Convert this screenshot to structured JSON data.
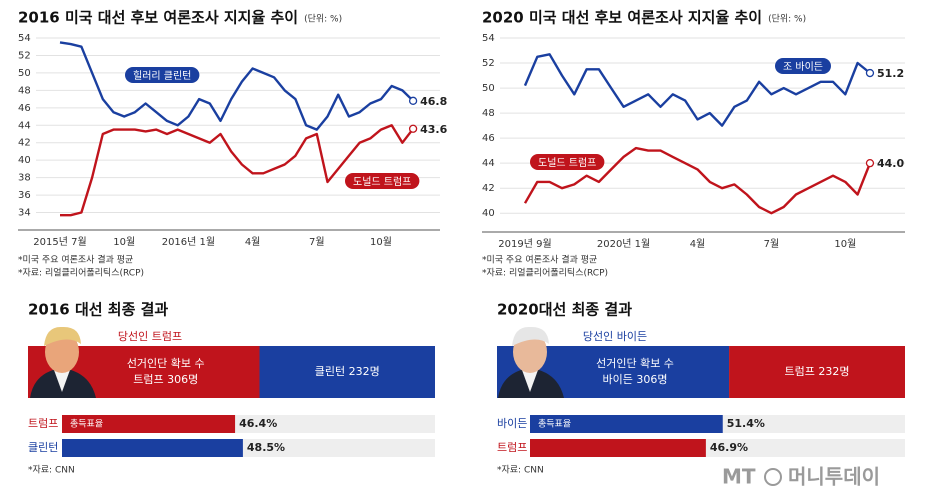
{
  "chart_data": [
    {
      "type": "line",
      "title": "2016 미국 대선 후보 여론조사 지지율 추이",
      "subtitle": "(단위: %)",
      "categories": [
        "2015년 7월",
        null,
        null,
        null,
        null,
        null,
        "10월",
        null,
        null,
        null,
        null,
        null,
        "2016년 1월",
        null,
        null,
        null,
        null,
        null,
        "4월",
        null,
        null,
        null,
        null,
        null,
        "7월",
        null,
        null,
        null,
        null,
        null,
        "10월",
        null,
        null,
        null
      ],
      "series": [
        {
          "name": "힐러리 클린턴",
          "color": "#1a3fa0",
          "values": [
            53.5,
            53.3,
            53,
            50,
            47,
            45.5,
            45,
            45.5,
            46.5,
            45.5,
            44.5,
            44,
            45,
            47,
            46.5,
            44.5,
            47,
            49,
            50.5,
            50,
            49.5,
            48,
            47,
            44,
            43.5,
            45,
            47.5,
            45,
            45.5,
            46.5,
            47,
            48.5,
            48,
            46.8
          ],
          "value_labels": [
            null,
            null,
            null,
            null,
            null,
            null,
            null,
            null,
            null,
            null,
            null,
            null,
            null,
            null,
            null,
            null,
            null,
            null,
            null,
            null,
            null,
            null,
            null,
            null,
            null,
            null,
            null,
            null,
            null,
            null,
            null,
            null,
            null,
            "46.8"
          ]
        },
        {
          "name": "도널드 트럼프",
          "color": "#c0141c",
          "values": [
            33.7,
            33.7,
            34,
            38,
            43,
            43.5,
            43.5,
            43.5,
            43.3,
            43.5,
            43,
            43.5,
            43,
            42.5,
            42,
            43,
            41,
            39.5,
            38.5,
            38.5,
            39,
            39.5,
            40.5,
            42.5,
            43,
            37.5,
            39,
            40.5,
            42,
            42.5,
            43.5,
            44,
            42,
            43.6
          ],
          "value_labels": [
            null,
            null,
            null,
            null,
            null,
            null,
            null,
            null,
            null,
            null,
            null,
            null,
            null,
            null,
            null,
            null,
            null,
            null,
            null,
            null,
            null,
            null,
            null,
            null,
            null,
            null,
            null,
            null,
            null,
            null,
            null,
            null,
            null,
            "43.6"
          ]
        }
      ],
      "ylim": [
        32,
        54
      ],
      "yticks": [
        34,
        36,
        38,
        40,
        42,
        44,
        46,
        48,
        50,
        52,
        54
      ],
      "grid": true,
      "notes": [
        "*미국 주요 여론조사 결과 평균",
        "*자료: 리얼클리어폴리틱스(RCP)"
      ]
    },
    {
      "type": "line",
      "title": "2020 미국 대선 후보 여론조사 지지율 추이",
      "subtitle": "(단위: %)",
      "categories": [
        "2019년 9월",
        null,
        null,
        null,
        null,
        null,
        null,
        null,
        "2020년 1월",
        null,
        null,
        null,
        null,
        null,
        "4월",
        null,
        null,
        null,
        null,
        null,
        "7월",
        null,
        null,
        null,
        null,
        null,
        "10월",
        null,
        null
      ],
      "series": [
        {
          "name": "조 바이든",
          "color": "#1a3fa0",
          "values": [
            50.2,
            52.5,
            52.7,
            51,
            49.5,
            51.5,
            51.5,
            50,
            48.5,
            49,
            49.5,
            48.5,
            49.5,
            49,
            47.5,
            48,
            47,
            48.5,
            49,
            50.5,
            49.5,
            50,
            49.5,
            50,
            50.5,
            50.5,
            49.5,
            52,
            51.2
          ],
          "value_labels": [
            null,
            null,
            null,
            null,
            null,
            null,
            null,
            null,
            null,
            null,
            null,
            null,
            null,
            null,
            null,
            null,
            null,
            null,
            null,
            null,
            null,
            null,
            null,
            null,
            null,
            null,
            null,
            null,
            "51.2"
          ]
        },
        {
          "name": "도널드 트럼프",
          "color": "#c0141c",
          "values": [
            40.8,
            42.5,
            42.5,
            42,
            42.3,
            43,
            42.5,
            43.5,
            44.5,
            45.2,
            45,
            45,
            44.5,
            44,
            43.5,
            42.5,
            42,
            42.3,
            41.5,
            40.5,
            40,
            40.5,
            41.5,
            42,
            42.5,
            43,
            42.5,
            41.5,
            44
          ],
          "value_labels": [
            null,
            null,
            null,
            null,
            null,
            null,
            null,
            null,
            null,
            null,
            null,
            null,
            null,
            null,
            null,
            null,
            null,
            null,
            null,
            null,
            null,
            null,
            null,
            null,
            null,
            null,
            null,
            null,
            "44.0"
          ]
        }
      ],
      "ylim": [
        38.5,
        54
      ],
      "yticks": [
        40,
        42,
        44,
        46,
        48,
        50,
        52,
        54
      ],
      "grid": true,
      "notes": [
        "*미국 주요 여론조사 결과 평균",
        "*자료: 리얼클리어폴리틱스(RCP)"
      ]
    },
    {
      "type": "result",
      "title": "2016 대선 최종 결과",
      "winner_label": "당선인 트럼프",
      "winner_color": "#c0141c",
      "electoral": {
        "label": "선거인단 확보 수",
        "values": [
          306,
          232
        ],
        "value_labels": [
          "트럼프 306명",
          "클린턴 232명"
        ],
        "colors": [
          "#c0141c",
          "#1a3fa0"
        ]
      },
      "popular": {
        "label": "총득표율",
        "categories": [
          "트럼프",
          "클린턴"
        ],
        "values": [
          46.4,
          48.5
        ],
        "value_labels": [
          "46.4%",
          "48.5%"
        ],
        "colors": [
          "#c0141c",
          "#1a3fa0"
        ],
        "xlim": [
          0,
          100
        ]
      },
      "source": "*자료: CNN"
    },
    {
      "type": "result",
      "title": "2020대선 최종 결과",
      "winner_label": "당선인 바이든",
      "winner_color": "#1a3fa0",
      "electoral": {
        "label": "선거인단 확보 수",
        "values": [
          306,
          232
        ],
        "value_labels": [
          "바이든 306명",
          "트럼프 232명"
        ],
        "colors": [
          "#1a3fa0",
          "#c0141c"
        ]
      },
      "popular": {
        "label": "총득표율",
        "categories": [
          "바이든",
          "트럼프"
        ],
        "values": [
          51.4,
          46.9
        ],
        "value_labels": [
          "51.4%",
          "46.9%"
        ],
        "colors": [
          "#1a3fa0",
          "#c0141c"
        ],
        "xlim": [
          0,
          100
        ]
      },
      "source": "*자료: CNN"
    }
  ],
  "logo": {
    "mark": "MT",
    "name": "머니투데이"
  }
}
